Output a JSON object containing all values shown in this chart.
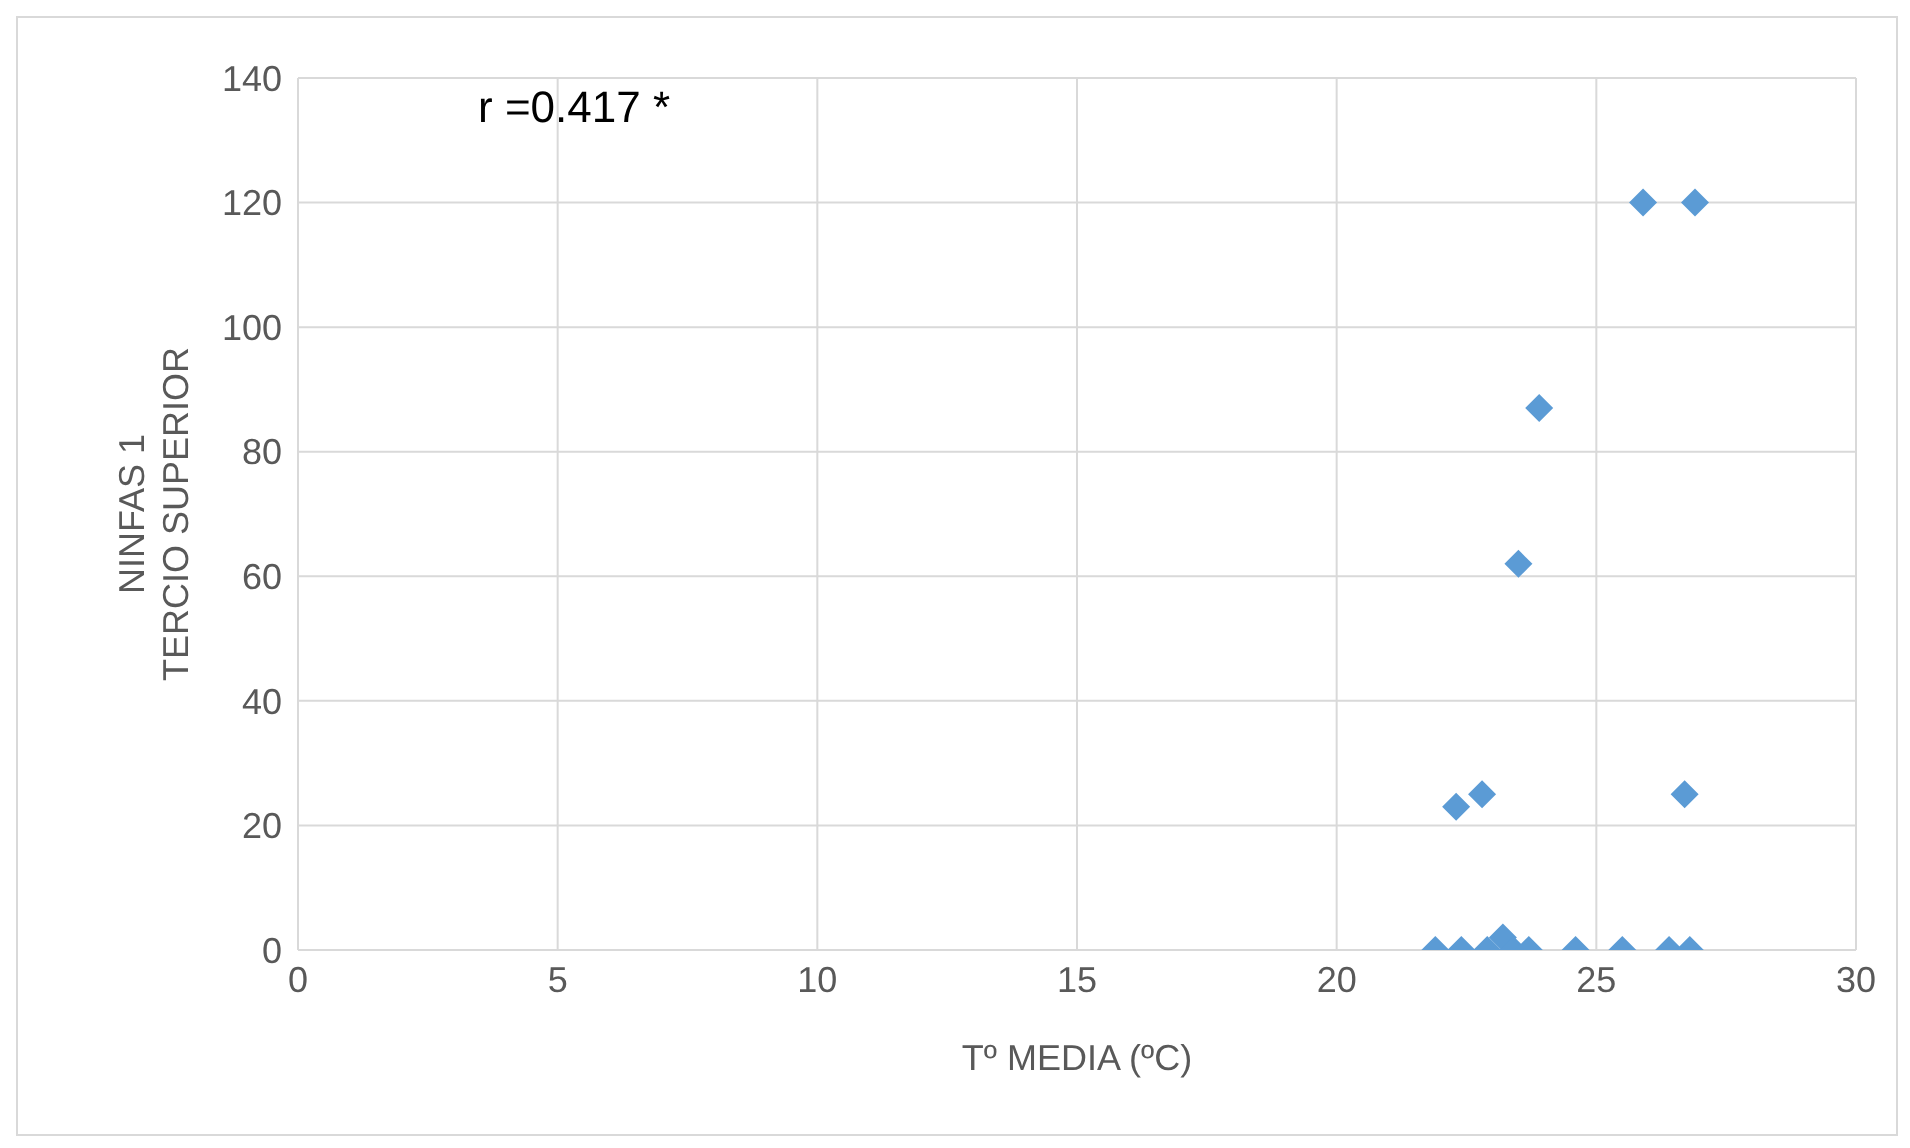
{
  "chart_data": {
    "type": "scatter",
    "xlabel": "Tº MEDIA (ºC)",
    "ylabel": "NINFAS 1\nTERCIO SUPERIOR",
    "annotations": [
      "r =0.417 *"
    ],
    "x": [
      25.9,
      26.9,
      23.9,
      23.5,
      22.8,
      22.3,
      26.7,
      21.9,
      22.4,
      22.9,
      23.2,
      23.4,
      23.7,
      24.6,
      25.5,
      26.4,
      26.8
    ],
    "values": [
      120,
      120,
      87,
      62,
      25,
      23,
      25,
      0,
      0,
      0,
      2,
      0,
      0,
      0,
      0,
      0,
      0
    ],
    "color": "#5b9bd5",
    "marker": "diamond",
    "grid": true,
    "legend": false,
    "xlim": [
      0,
      30
    ],
    "xticks": [
      0,
      5,
      10,
      15,
      20,
      25,
      30
    ],
    "ylim": [
      0,
      140
    ],
    "yticks": [
      0,
      20,
      40,
      60,
      80,
      100,
      120,
      140
    ]
  }
}
